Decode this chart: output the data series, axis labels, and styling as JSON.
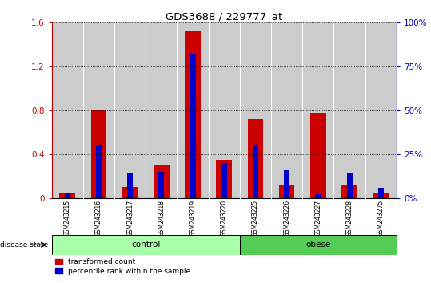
{
  "title": "GDS3688 / 229777_at",
  "samples": [
    "GSM243215",
    "GSM243216",
    "GSM243217",
    "GSM243218",
    "GSM243219",
    "GSM243220",
    "GSM243225",
    "GSM243226",
    "GSM243227",
    "GSM243228",
    "GSM243275"
  ],
  "red_values": [
    0.05,
    0.8,
    0.1,
    0.3,
    1.52,
    0.35,
    0.72,
    0.12,
    0.78,
    0.12,
    0.05
  ],
  "blue_pct": [
    3.0,
    30.0,
    14.0,
    15.0,
    82.0,
    20.0,
    30.0,
    16.0,
    2.0,
    14.0,
    6.0
  ],
  "ylim_left": [
    0,
    1.6
  ],
  "ylim_right": [
    0,
    100
  ],
  "yticks_left": [
    0,
    0.4,
    0.8,
    1.2,
    1.6
  ],
  "yticks_right": [
    0,
    25,
    50,
    75,
    100
  ],
  "ytick_labels_left": [
    "0",
    "0.4",
    "0.8",
    "1.2",
    "1.6"
  ],
  "ytick_labels_right": [
    "0%",
    "25%",
    "50%",
    "75%",
    "100%"
  ],
  "n_control": 6,
  "n_obese": 5,
  "control_label": "control",
  "obese_label": "obese",
  "disease_state_label": "disease state",
  "legend_red": "transformed count",
  "legend_blue": "percentile rank within the sample",
  "red_color": "#cc0000",
  "blue_color": "#0000cc",
  "control_bg": "#aaffaa",
  "obese_bg": "#55cc55",
  "bar_bg": "#cccccc",
  "bar_width": 0.5,
  "blue_bar_width": 0.18
}
